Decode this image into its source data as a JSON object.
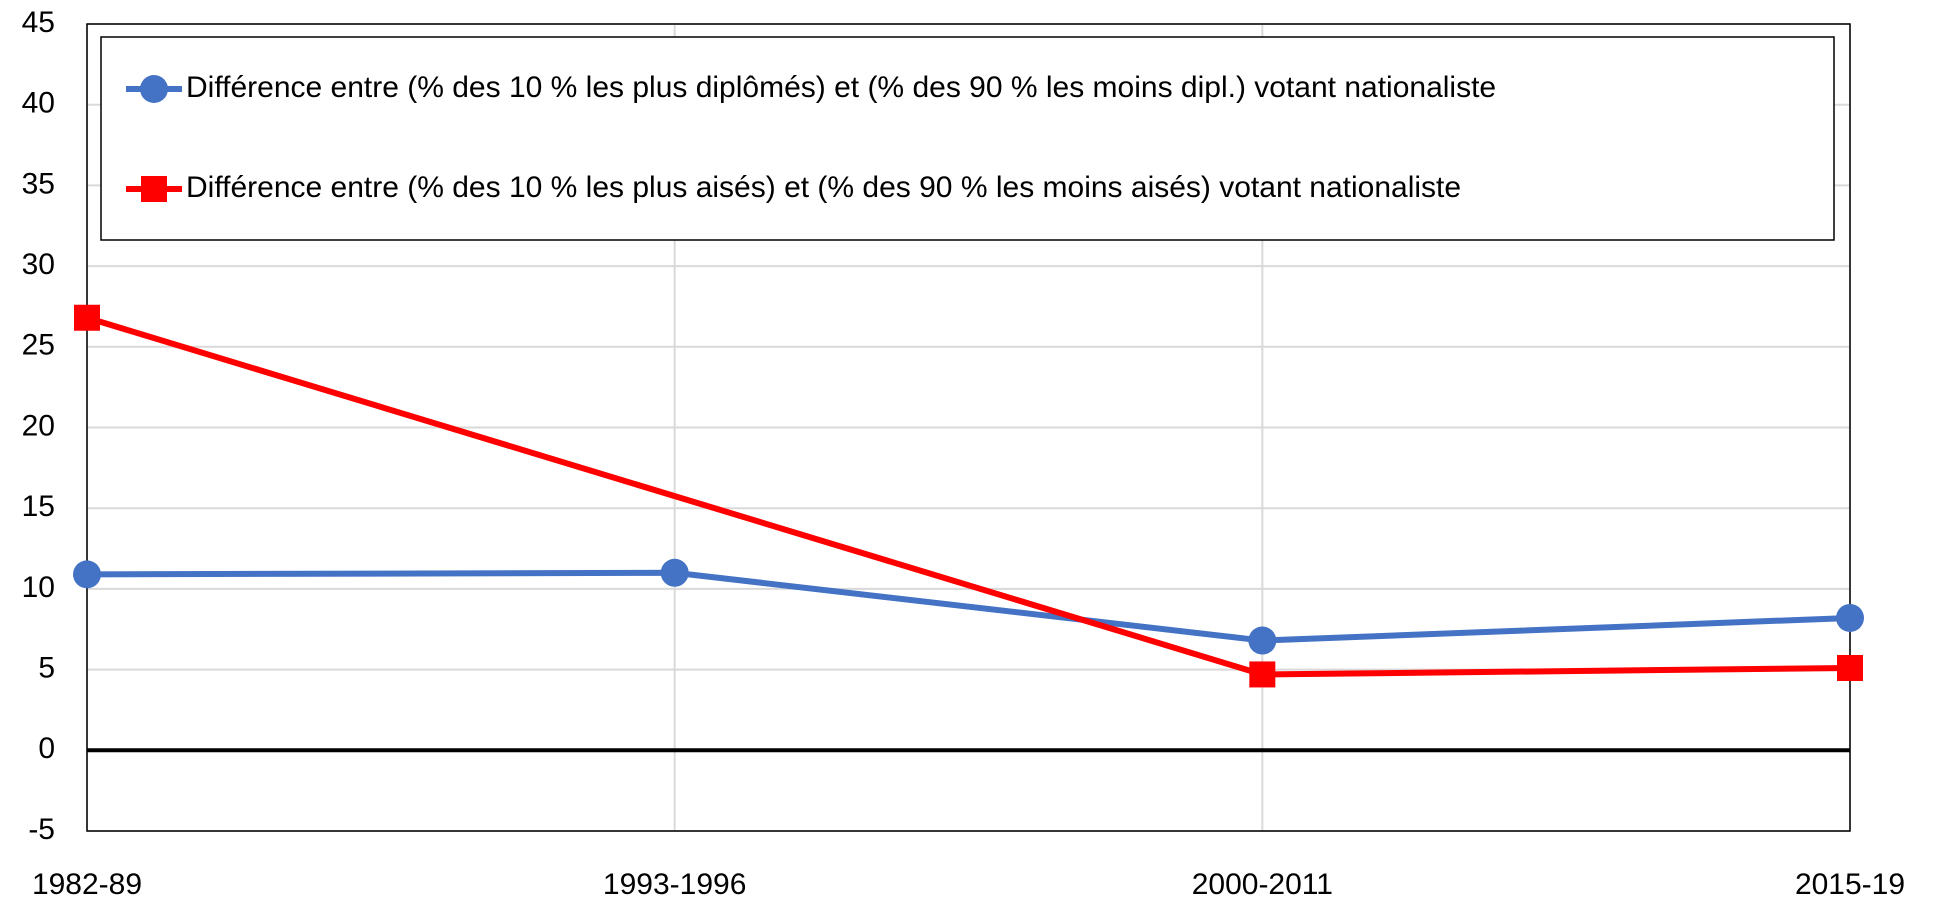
{
  "chart_data": {
    "type": "line",
    "categories": [
      "1982-89",
      "1993-1996",
      "2000-2011",
      "2015-19"
    ],
    "series": [
      {
        "name": "Différence entre (% des 10 % les plus diplômés) et (% des 90 % les moins dipl.) votant nationaliste",
        "color": "#4472c4",
        "marker": "circle",
        "values": [
          10.9,
          11.0,
          6.8,
          8.2
        ]
      },
      {
        "name": "Différence entre (% des 10 % les plus aisés) et (% des 90 % les moins aisés) votant nationaliste",
        "color": "#ff0000",
        "marker": "square",
        "values": [
          26.8,
          null,
          4.7,
          5.1
        ]
      }
    ],
    "connect_gaps": true,
    "ylim": [
      -5,
      45
    ],
    "yticks": [
      -5,
      0,
      5,
      10,
      15,
      20,
      25,
      30,
      35,
      40,
      45
    ],
    "grid": true,
    "legend": "top"
  }
}
